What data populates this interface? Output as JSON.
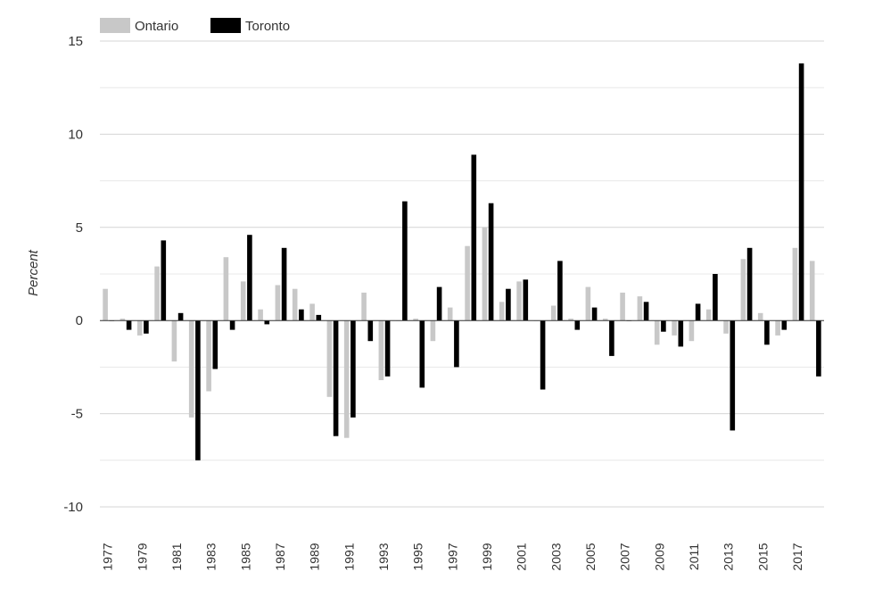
{
  "chart_data": {
    "type": "bar",
    "title": "",
    "xlabel": "",
    "ylabel": "Percent",
    "ylim": [
      -10,
      15
    ],
    "yticks": [
      -10,
      -5,
      0,
      5,
      10,
      15
    ],
    "ytick_labels": [
      "-10",
      "-5",
      "0",
      "5",
      "10",
      "15"
    ],
    "grid": "horizontal",
    "legend_position": "top-left",
    "categories": [
      "1977",
      "1978",
      "1979",
      "1980",
      "1981",
      "1982",
      "1983",
      "1984",
      "1985",
      "1986",
      "1987",
      "1988",
      "1989",
      "1990",
      "1991",
      "1992",
      "1993",
      "1994",
      "1995",
      "1996",
      "1997",
      "1998",
      "1999",
      "2000",
      "2001",
      "2002",
      "2003",
      "2004",
      "2005",
      "2006",
      "2007",
      "2008",
      "2009",
      "2010",
      "2011",
      "2012",
      "2013",
      "2014",
      "2015",
      "2016",
      "2017",
      "2018"
    ],
    "xtick_labels": [
      "1977",
      "1979",
      "1981",
      "1983",
      "1985",
      "1987",
      "1989",
      "1991",
      "1993",
      "1995",
      "1997",
      "1999",
      "2001",
      "2003",
      "2005",
      "2007",
      "2009",
      "2011",
      "2013",
      "2015",
      "2017"
    ],
    "series": [
      {
        "name": "Ontario",
        "color": "#c8c8c8",
        "values": [
          1.7,
          0.1,
          -0.8,
          2.9,
          -2.2,
          -5.2,
          -3.8,
          3.4,
          2.1,
          0.6,
          1.9,
          1.7,
          0.9,
          -4.1,
          -6.3,
          1.5,
          -3.2,
          0.0,
          0.1,
          -1.1,
          0.7,
          4.0,
          5.0,
          1.0,
          2.1,
          0.0,
          0.8,
          0.1,
          1.8,
          0.1,
          1.5,
          1.3,
          -1.3,
          -0.8,
          -1.1,
          0.6,
          -0.7,
          3.3,
          0.4,
          -0.8,
          3.9,
          3.2
        ]
      },
      {
        "name": "Toronto",
        "color": "#000000",
        "values": [
          0.0,
          -0.5,
          -0.7,
          4.3,
          0.4,
          -7.5,
          -2.6,
          -0.5,
          4.6,
          -0.2,
          3.9,
          0.6,
          0.3,
          -6.2,
          -5.2,
          -1.1,
          -3.0,
          6.4,
          -3.6,
          1.8,
          -2.5,
          8.9,
          6.3,
          1.7,
          2.2,
          -3.7,
          3.2,
          -0.5,
          0.7,
          -1.9,
          0.0,
          1.0,
          -0.6,
          -1.4,
          0.9,
          2.5,
          -5.9,
          3.9,
          -1.3,
          -0.5,
          13.8,
          -3.0
        ]
      }
    ]
  }
}
